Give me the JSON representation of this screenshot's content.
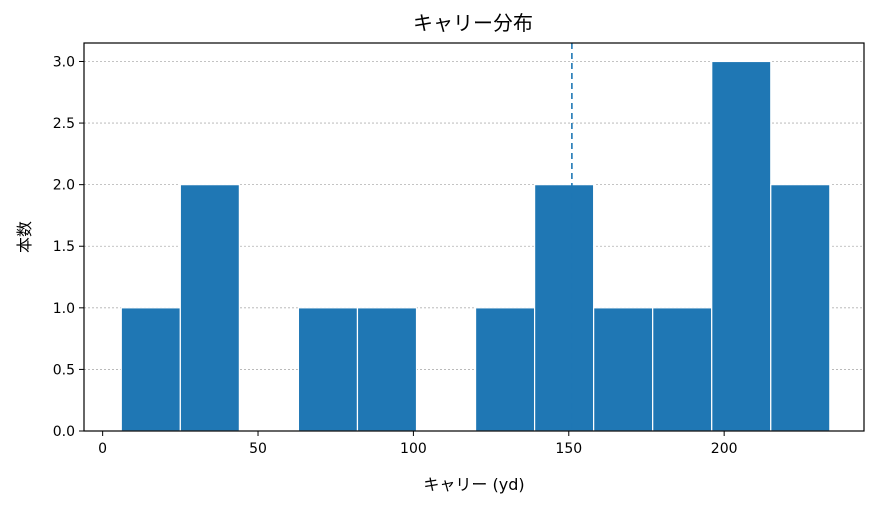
{
  "chart_data": {
    "type": "bar",
    "title": "キャリー分布",
    "xlabel": "キャリー (yd)",
    "ylabel": "本数",
    "xlim": [
      -6,
      245
    ],
    "ylim": [
      0,
      3.15
    ],
    "xticks": [
      0,
      50,
      100,
      150,
      200
    ],
    "yticks": [
      0.0,
      0.5,
      1.0,
      1.5,
      2.0,
      2.5,
      3.0
    ],
    "ytick_labels": [
      "0.0",
      "0.5",
      "1.0",
      "1.5",
      "2.0",
      "2.5",
      "3.0"
    ],
    "bin_edges": [
      6,
      25,
      44,
      63,
      82,
      101,
      120,
      139,
      158,
      177,
      196,
      215,
      234
    ],
    "counts": [
      1,
      2,
      0,
      1,
      1,
      0,
      1,
      2,
      1,
      1,
      3,
      2
    ],
    "reference_line_x": 151,
    "grid": "y",
    "bar_color": "#1f77b4",
    "line_color": "#1f77b4"
  }
}
